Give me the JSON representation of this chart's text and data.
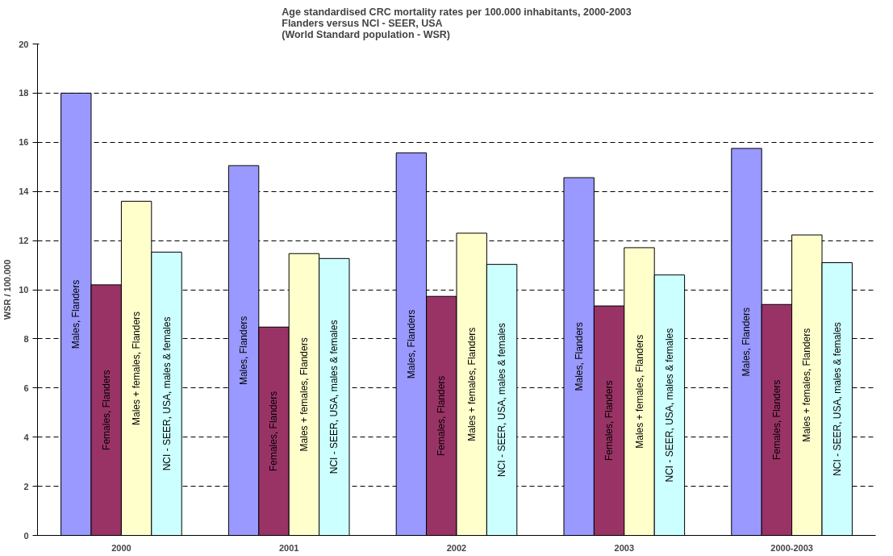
{
  "chart_data": {
    "type": "bar",
    "title": "Age standardised CRC mortality rates per 100.000 inhabitants, 2000-2003\nFlanders versus NCI - SEER, USA\n(World Standard population - WSR)",
    "ylabel": "WSR / 100.000",
    "categories": [
      "2000",
      "2001",
      "2002",
      "2003",
      "2000-2003"
    ],
    "series": [
      {
        "name": "Males, Flanders",
        "color": "#9999ff",
        "values": [
          18.0,
          15.05,
          15.57,
          14.56,
          15.75
        ]
      },
      {
        "name": "Females, Flanders",
        "color": "#993366",
        "values": [
          10.2,
          8.48,
          9.73,
          9.34,
          9.4
        ]
      },
      {
        "name": "Males + females, Flanders",
        "color": "#ffffcc",
        "values": [
          13.6,
          11.47,
          12.3,
          11.71,
          12.23
        ]
      },
      {
        "name": "NCI - SEER, USA, males & females",
        "color": "#ccffff",
        "values": [
          11.53,
          11.27,
          11.03,
          10.6,
          11.1
        ]
      }
    ],
    "ylim": [
      0,
      20
    ],
    "yticks": [
      0,
      2,
      4,
      6,
      8,
      10,
      12,
      14,
      16,
      18,
      20
    ],
    "grid": "y",
    "legend": false
  }
}
